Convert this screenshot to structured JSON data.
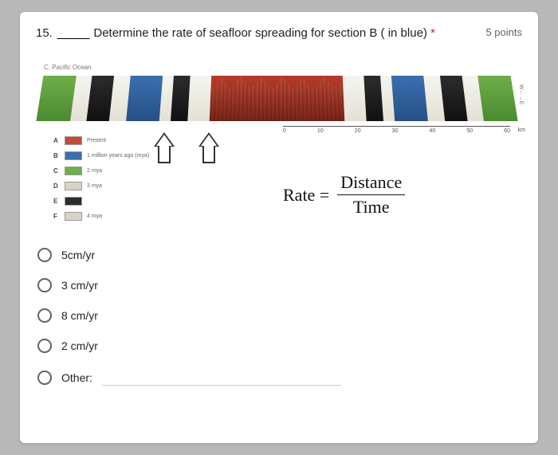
{
  "question": {
    "number": "15.",
    "blank": "_____",
    "text": "Determine the rate of seafloor spreading for section B ( in blue)",
    "points": "5 points"
  },
  "diagram": {
    "ocean_label": "C. Pacific Ocean",
    "right_label": "W←→E",
    "scale_ticks": [
      "0",
      "10",
      "20",
      "30",
      "40",
      "50",
      "60"
    ],
    "scale_unit": "km",
    "segments": [
      {
        "cls": "g",
        "w": 6
      },
      {
        "cls": "w",
        "w": 3
      },
      {
        "cls": "k",
        "w": 4
      },
      {
        "cls": "w",
        "w": 3
      },
      {
        "cls": "b",
        "w": 6
      },
      {
        "cls": "w",
        "w": 2
      },
      {
        "cls": "k",
        "w": 3
      },
      {
        "cls": "w",
        "w": 4
      },
      {
        "cls": "r",
        "w": 24
      },
      {
        "cls": "w",
        "w": 4
      },
      {
        "cls": "k",
        "w": 3
      },
      {
        "cls": "w",
        "w": 2
      },
      {
        "cls": "b",
        "w": 6
      },
      {
        "cls": "w",
        "w": 3
      },
      {
        "cls": "k",
        "w": 4
      },
      {
        "cls": "w",
        "w": 3
      },
      {
        "cls": "g",
        "w": 6
      }
    ],
    "legend": [
      {
        "ltr": "A",
        "color": "#c14a38",
        "label": "Present"
      },
      {
        "ltr": "B",
        "color": "#3a6fb0",
        "label": "1 million years ago (mya)"
      },
      {
        "ltr": "C",
        "color": "#6fae4a",
        "label": "2 mya"
      },
      {
        "ltr": "D",
        "color": "#d8d4c5",
        "label": "3 mya"
      },
      {
        "ltr": "E",
        "color": "#2c2c2c",
        "label": ""
      },
      {
        "ltr": "F",
        "color": "#d8d4c5",
        "label": "4 mya"
      }
    ]
  },
  "formula": {
    "lhs": "Rate =",
    "num": "Distance",
    "den": "Time"
  },
  "options": [
    {
      "label": "5cm/yr"
    },
    {
      "label": "3 cm/yr"
    },
    {
      "label": "8 cm/yr"
    },
    {
      "label": "2 cm/yr"
    }
  ],
  "other_label": "Other:"
}
